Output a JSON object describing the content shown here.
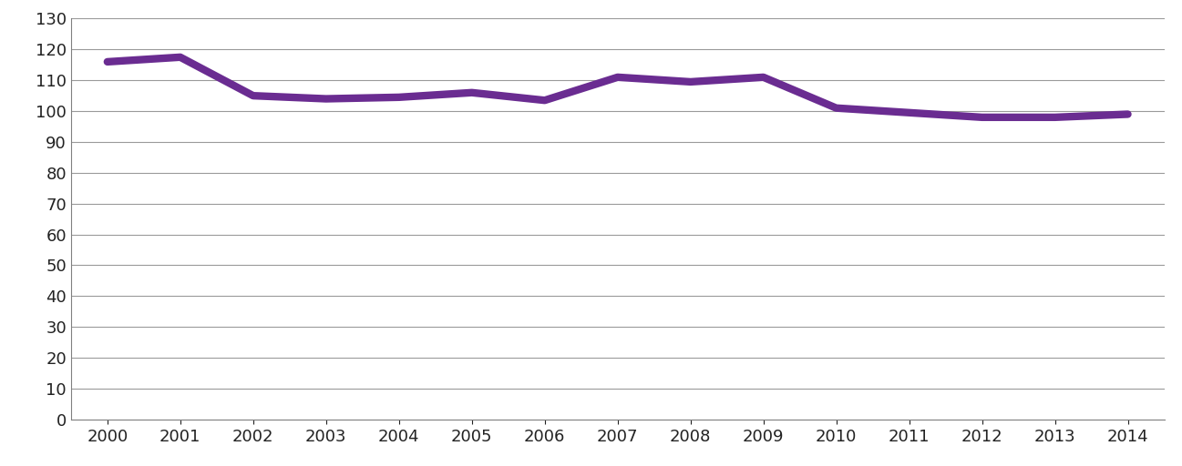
{
  "chart_data": {
    "type": "line",
    "categories": [
      "2000",
      "2001",
      "2002",
      "2003",
      "2004",
      "2005",
      "2006",
      "2007",
      "2008",
      "2009",
      "2010",
      "2011",
      "2012",
      "2013",
      "2014"
    ],
    "values": [
      116,
      117.5,
      105,
      104,
      104.5,
      106,
      103.5,
      111,
      109.5,
      111,
      101,
      99.5,
      98,
      98,
      99
    ],
    "color": "#6a2c91",
    "ylim": [
      0,
      130
    ],
    "yticks": [
      0,
      10,
      20,
      30,
      40,
      50,
      60,
      70,
      80,
      90,
      100,
      110,
      120,
      130
    ],
    "grid": true
  }
}
